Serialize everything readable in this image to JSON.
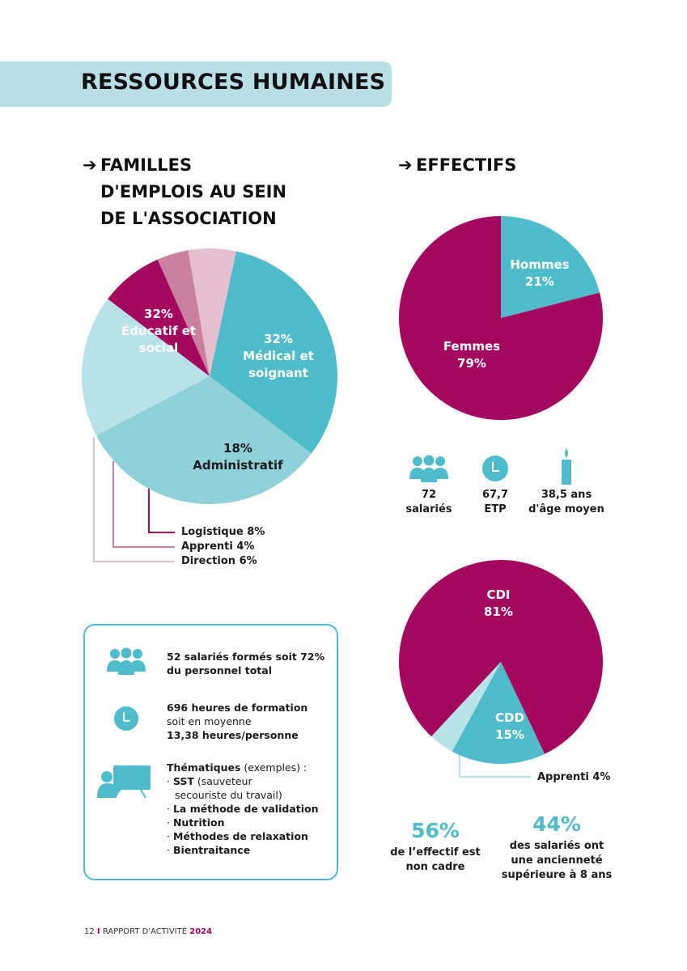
{
  "header": {
    "title": "RESSOURCES HUMAINES"
  },
  "familles": {
    "title_lines": [
      "FAMILLES",
      "D'EMPLOIS AU SEIN",
      "DE L'ASSOCIATION"
    ],
    "labels": {
      "educatif": [
        "32%",
        "Éducatif et",
        "social"
      ],
      "medical": [
        "32%",
        "Médical et",
        "soignant"
      ],
      "administratif": [
        "18%",
        "Administratif"
      ],
      "logistique": "Logistique 8%",
      "apprenti": "Apprenti 4%",
      "direction": "Direction 6%"
    }
  },
  "effectifs": {
    "title": "EFFECTIFS",
    "labels": {
      "hommes": [
        "Hommes",
        "21%"
      ],
      "femmes": [
        "Femmes",
        "79%"
      ]
    },
    "stats": [
      {
        "icon": "people-icon",
        "lines": [
          "72",
          "salariés"
        ]
      },
      {
        "icon": "clock-icon",
        "lines": [
          "67,7",
          "ETP"
        ]
      },
      {
        "icon": "candle-icon",
        "lines": [
          "38,5 ans",
          "d'âge moyen"
        ]
      }
    ],
    "contrats_labels": {
      "cdi": [
        "CDI",
        "81%"
      ],
      "cdd": [
        "CDD",
        "15%"
      ],
      "apprenti": "Apprenti 4%"
    }
  },
  "formation": {
    "item1": [
      "52 salariés formés soit 72%",
      "du personnel total"
    ],
    "item2": [
      "696 heures de formation",
      "soit en moyenne",
      "13,38 heures/personne"
    ],
    "item3_title": "Thématiques",
    "item3_suffix": " (exemples) :",
    "item3_bullets": [
      {
        "bold": "SST",
        "rest": " (sauveteur"
      },
      {
        "bold": "",
        "rest": "secouriste du travail)"
      },
      {
        "bold": "La méthode de validation",
        "rest": ""
      },
      {
        "bold": "Nutrition",
        "rest": ""
      },
      {
        "bold": "Méthodes de relaxation",
        "rest": ""
      },
      {
        "bold": "Bientraitance",
        "rest": ""
      }
    ]
  },
  "bottom_stats": [
    {
      "value": "56%",
      "lines": [
        "de l’effectif est",
        "non cadre"
      ]
    },
    {
      "value": "44%",
      "lines": [
        "des salariés ont",
        "une ancienneté",
        "supérieure à 8 ans"
      ]
    }
  ],
  "footer": {
    "page": "12",
    "sep": "I",
    "label": "RAPPORT D'ACTIVITÉ",
    "year": "2024"
  },
  "chart_data": [
    {
      "type": "pie",
      "categories": [
        "Éducatif et social",
        "Médical et soignant",
        "Administratif",
        "Logistique",
        "Apprenti",
        "Direction"
      ],
      "values": [
        32,
        32,
        18,
        8,
        4,
        6
      ],
      "colors": [
        "#4fbccb",
        "#8fd0da",
        "#b7e2e7",
        "#a5085f",
        "#c9819f",
        "#e5bfce"
      ]
    },
    {
      "type": "pie",
      "categories": [
        "Hommes",
        "Femmes"
      ],
      "values": [
        21,
        79
      ],
      "colors": [
        "#4fbccb",
        "#a5085f"
      ]
    },
    {
      "type": "pie",
      "categories": [
        "CDI",
        "CDD",
        "Apprenti"
      ],
      "values": [
        81,
        15,
        4
      ],
      "colors": [
        "#a5085f",
        "#4fbccb",
        "#b7e2e7"
      ]
    }
  ]
}
